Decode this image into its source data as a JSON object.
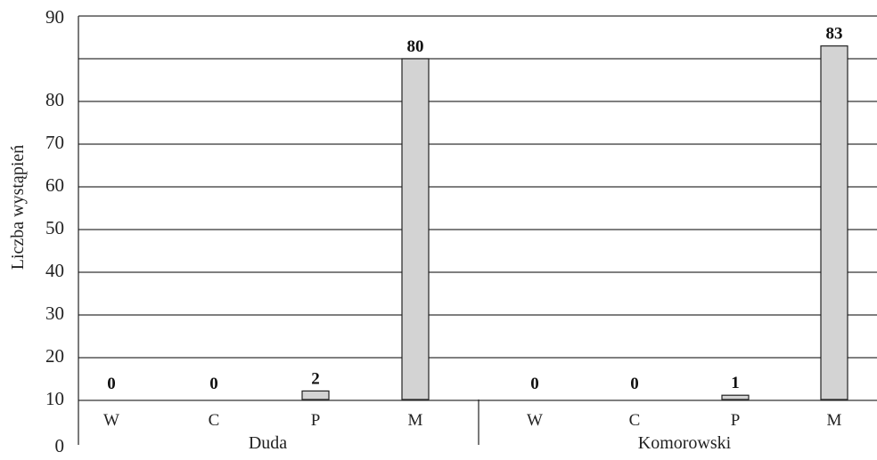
{
  "chart_data": {
    "type": "bar",
    "ylabel": "Liczba wystąpień",
    "y_ticks": [
      "0",
      "10",
      "20",
      "30",
      "40",
      "50",
      "60",
      "70",
      "80",
      "90"
    ],
    "ylim": [
      0,
      90
    ],
    "grid": true,
    "groups": [
      {
        "name": "Duda",
        "categories": [
          "W",
          "C",
          "P",
          "M"
        ],
        "values": [
          0,
          0,
          2,
          80
        ],
        "value_labels": [
          "0",
          "0",
          "2",
          "80"
        ]
      },
      {
        "name": "Komorowski",
        "categories": [
          "W",
          "C",
          "P",
          "M"
        ],
        "values": [
          0,
          0,
          1,
          83
        ],
        "value_labels": [
          "0",
          "0",
          "1",
          "83"
        ]
      }
    ]
  }
}
